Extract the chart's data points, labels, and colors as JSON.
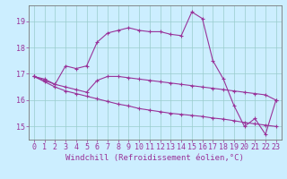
{
  "background_color": "#cceeff",
  "grid_color": "#99cccc",
  "line_color": "#993399",
  "ylim": [
    14.5,
    19.6
  ],
  "xlim": [
    -0.5,
    23.5
  ],
  "yticks": [
    15,
    16,
    17,
    18,
    19
  ],
  "xticks": [
    0,
    1,
    2,
    3,
    4,
    5,
    6,
    7,
    8,
    9,
    10,
    11,
    12,
    13,
    14,
    15,
    16,
    17,
    18,
    19,
    20,
    21,
    22,
    23
  ],
  "series": [
    [
      16.9,
      16.8,
      16.6,
      17.3,
      17.2,
      17.3,
      18.2,
      18.55,
      18.65,
      18.75,
      18.65,
      18.6,
      18.6,
      18.5,
      18.45,
      19.35,
      19.1,
      17.5,
      16.8,
      15.8,
      15.0,
      15.3,
      14.7,
      16.0
    ],
    [
      16.9,
      16.75,
      16.6,
      16.5,
      16.4,
      16.3,
      16.75,
      16.9,
      16.9,
      16.85,
      16.8,
      16.75,
      16.7,
      16.65,
      16.6,
      16.55,
      16.5,
      16.45,
      16.4,
      16.35,
      16.3,
      16.25,
      16.2,
      16.0
    ],
    [
      16.9,
      16.7,
      16.5,
      16.35,
      16.25,
      16.15,
      16.05,
      15.95,
      15.85,
      15.78,
      15.68,
      15.62,
      15.56,
      15.5,
      15.46,
      15.42,
      15.38,
      15.32,
      15.28,
      15.22,
      15.15,
      15.1,
      15.05,
      15.0
    ]
  ],
  "xlabel": "Windchill (Refroidissement éolien,°C)",
  "xlabel_fontsize": 6.5,
  "tick_fontsize": 6.0,
  "linewidth": 0.8,
  "markersize": 2.5
}
